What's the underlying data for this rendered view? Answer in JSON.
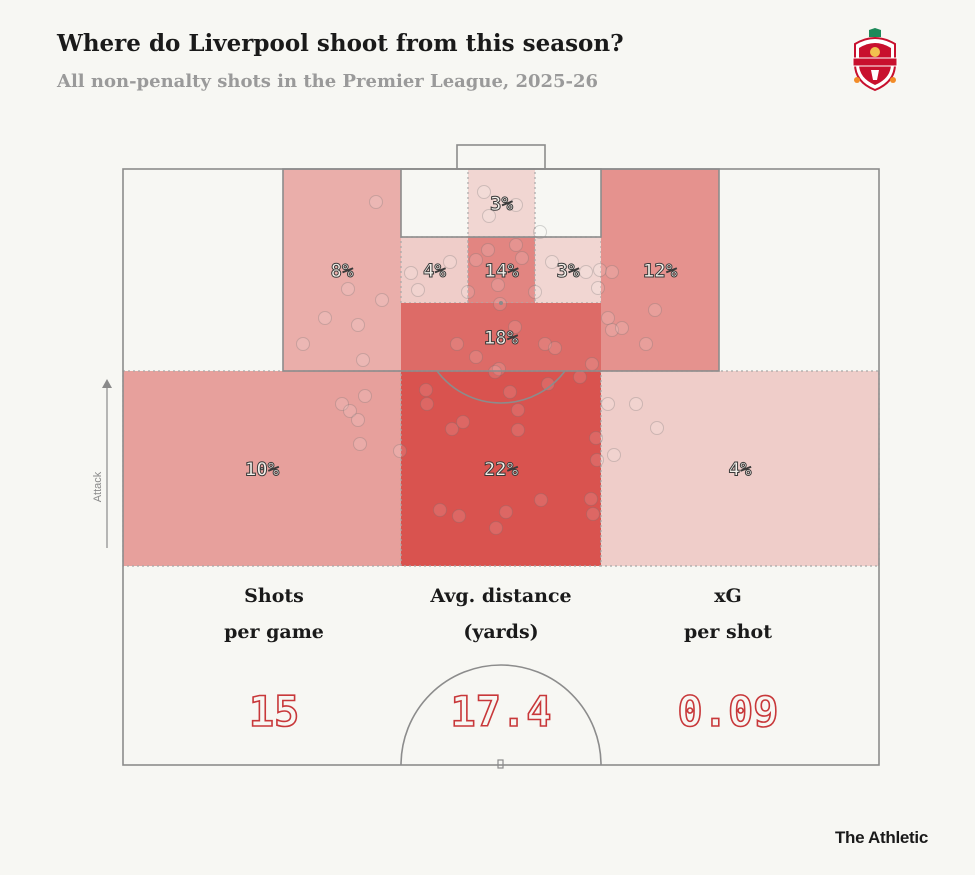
{
  "header": {
    "title": "Where do Liverpool shoot from this season?",
    "subtitle": "All non-penalty shots in the Premier League, 2025-26"
  },
  "footer": {
    "credit": "The Athletic"
  },
  "crest": {
    "text": "LIVERPOOL",
    "accent": "#c8102e"
  },
  "axis": {
    "direction_label": "Attack"
  },
  "chart_data": {
    "type": "heatmap",
    "title": "Where do Liverpool shoot from this season?",
    "subtitle": "All non-penalty shots in the Premier League, 2025-26",
    "zones": [
      {
        "id": "six-yard-box",
        "label": "3%",
        "value": 3
      },
      {
        "id": "penalty-area-left",
        "label": "8%",
        "value": 8
      },
      {
        "id": "six-yard-width-left",
        "label": "4%",
        "value": 4
      },
      {
        "id": "six-yard-width-centre",
        "label": "14%",
        "value": 14
      },
      {
        "id": "six-yard-width-right",
        "label": "3%",
        "value": 3
      },
      {
        "id": "penalty-area-right",
        "label": "12%",
        "value": 12
      },
      {
        "id": "penalty-spot-band",
        "label": "18%",
        "value": 18
      },
      {
        "id": "outside-box-left",
        "label": "10%",
        "value": 10
      },
      {
        "id": "outside-box-centre",
        "label": "22%",
        "value": 22
      },
      {
        "id": "outside-box-right",
        "label": "4%",
        "value": 4
      }
    ],
    "color_scale": {
      "low": "#f7f7f3",
      "high": "#d9534f",
      "max": 22
    }
  },
  "stats": [
    {
      "label_line1": "Shots",
      "label_line2": "per game",
      "value": "15"
    },
    {
      "label_line1": "Avg. distance",
      "label_line2": "(yards)",
      "value": "17.4"
    },
    {
      "label_line1": "xG",
      "label_line2": "per shot",
      "value": "0.09"
    }
  ]
}
